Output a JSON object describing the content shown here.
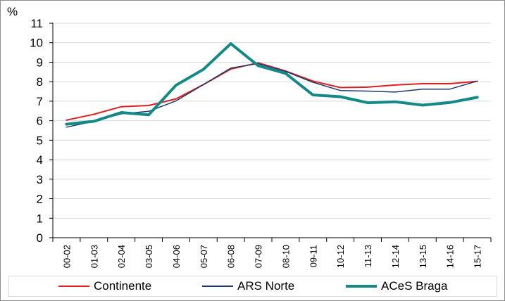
{
  "chart_data": {
    "type": "line",
    "unit_label": "%",
    "ylim": [
      0,
      11
    ],
    "yticks": [
      "0",
      "1",
      "2",
      "3",
      "4",
      "5",
      "6",
      "7",
      "8",
      "9",
      "10",
      "11"
    ],
    "grid": true,
    "legend_position": "bottom",
    "categories": [
      "00-02",
      "01-03",
      "02-04",
      "03-05",
      "04-06",
      "05-07",
      "06-08",
      "07-09",
      "08-10",
      "09-11",
      "10-12",
      "11-13",
      "12-14",
      "13-15",
      "14-16",
      "15-17"
    ],
    "series": [
      {
        "name": "Continente",
        "color": "#e02020",
        "values": [
          6.03,
          6.33,
          6.72,
          6.78,
          7.12,
          7.85,
          8.65,
          8.97,
          8.55,
          8.03,
          7.7,
          7.72,
          7.83,
          7.9,
          7.9,
          8.02
        ]
      },
      {
        "name": "ARS Norte",
        "color": "#1f3a68",
        "values": [
          5.67,
          5.97,
          6.35,
          6.48,
          7.02,
          7.85,
          8.7,
          8.93,
          8.53,
          7.97,
          7.55,
          7.52,
          7.47,
          7.62,
          7.62,
          8.03
        ]
      },
      {
        "name": "ACeS Braga",
        "color": "#138a86",
        "values": [
          5.82,
          5.97,
          6.42,
          6.3,
          7.82,
          8.63,
          9.95,
          8.82,
          8.43,
          7.32,
          7.23,
          6.92,
          6.97,
          6.8,
          6.93,
          7.2
        ]
      }
    ]
  }
}
